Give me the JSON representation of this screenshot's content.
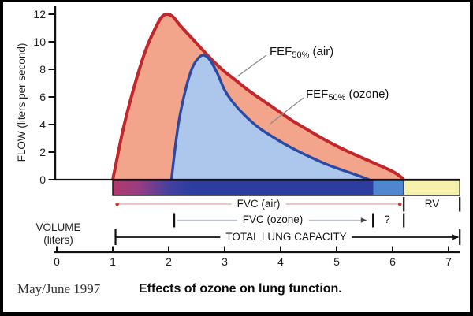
{
  "chart_data": {
    "type": "area",
    "title": "Effects of ozone on lung function.",
    "xlabel": "VOLUME (liters)",
    "ylabel": "FLOW (liters per second)",
    "xlim": [
      0,
      7
    ],
    "ylim": [
      0,
      12
    ],
    "xticks": [
      0,
      1,
      2,
      3,
      4,
      5,
      6,
      7
    ],
    "yticks": [
      0,
      2,
      4,
      6,
      8,
      10,
      12
    ],
    "grid": false,
    "legend_position": "inline-annotations",
    "series": [
      {
        "name": "air",
        "annotation": "FEF50% (air)",
        "stroke": "#C4272B",
        "fill": "#F2A58B",
        "peak_flow_l_per_s": 12,
        "points": [
          [
            1.0,
            0
          ],
          [
            1.08,
            1.6
          ],
          [
            1.2,
            3.9
          ],
          [
            1.38,
            6.7
          ],
          [
            1.58,
            9.3
          ],
          [
            1.75,
            10.9
          ],
          [
            1.9,
            11.9
          ],
          [
            2.05,
            11.9
          ],
          [
            2.2,
            11.2
          ],
          [
            2.45,
            10.1
          ],
          [
            2.7,
            9.0
          ],
          [
            2.95,
            8.0
          ],
          [
            3.2,
            7.2
          ],
          [
            3.45,
            6.4
          ],
          [
            3.7,
            5.7
          ],
          [
            3.95,
            5.0
          ],
          [
            4.2,
            4.3
          ],
          [
            4.45,
            3.7
          ],
          [
            4.7,
            3.1
          ],
          [
            4.95,
            2.55
          ],
          [
            5.2,
            2.05
          ],
          [
            5.45,
            1.6
          ],
          [
            5.7,
            1.15
          ],
          [
            5.95,
            0.7
          ],
          [
            6.1,
            0.35
          ],
          [
            6.2,
            0
          ]
        ]
      },
      {
        "name": "ozone",
        "annotation": "FEF50% (ozone)",
        "stroke": "#2B4AA4",
        "fill": "#ADC6EB",
        "peak_flow_l_per_s": 9,
        "points": [
          [
            2.05,
            0
          ],
          [
            2.1,
            1.8
          ],
          [
            2.18,
            4.2
          ],
          [
            2.3,
            6.5
          ],
          [
            2.42,
            8.1
          ],
          [
            2.55,
            8.9
          ],
          [
            2.65,
            9.0
          ],
          [
            2.75,
            8.6
          ],
          [
            2.87,
            7.7
          ],
          [
            3.0,
            6.5
          ],
          [
            3.15,
            5.6
          ],
          [
            3.35,
            4.7
          ],
          [
            3.6,
            3.8
          ],
          [
            3.9,
            3.0
          ],
          [
            4.2,
            2.3
          ],
          [
            4.5,
            1.7
          ],
          [
            4.8,
            1.15
          ],
          [
            5.1,
            0.7
          ],
          [
            5.35,
            0.35
          ],
          [
            5.58,
            0
          ]
        ]
      }
    ]
  },
  "labels": {
    "fef_air": {
      "prefix": "FEF",
      "sub": "50%",
      "suffix": " (air)"
    },
    "fef_ozone": {
      "prefix": "FEF",
      "sub": "50%",
      "suffix": " (ozone)"
    }
  },
  "rows": {
    "fvc_air": {
      "label": "FVC (air)",
      "start_volume": 1.08,
      "end_volume": 6.13
    },
    "rv": {
      "label": "RV",
      "start_volume": 6.2,
      "end_volume": 7.2
    },
    "fvc_ozone": {
      "label": "FVC (ozone)",
      "start_volume": 2.1,
      "end_volume": 5.54
    },
    "uncertain": {
      "label": "?",
      "start_volume": 5.65,
      "end_volume": 6.2
    },
    "tlc": {
      "label": "TOTAL LUNG CAPACITY",
      "start_volume": 1.05,
      "end_volume": 7.2
    }
  },
  "bar": {
    "start_volume": 1.0,
    "end_volume": 7.2,
    "gradient": [
      {
        "v": 1.0,
        "c": "#B13A6B"
      },
      {
        "v": 1.45,
        "c": "#9A3C82"
      },
      {
        "v": 2.0,
        "c": "#45409E"
      },
      {
        "v": 2.4,
        "c": "#2B3EA0"
      },
      {
        "v": 5.65,
        "c": "#2B3EA0"
      },
      {
        "v": 5.66,
        "c": "#4E86D0"
      },
      {
        "v": 6.2,
        "c": "#4E86D0"
      },
      {
        "v": 6.21,
        "c": "#F6F2AC"
      },
      {
        "v": 7.2,
        "c": "#F6F2AC"
      }
    ]
  },
  "volume_label": {
    "line1": "VOLUME",
    "line2": "(liters)"
  },
  "caption": {
    "date": "May/June 1997",
    "title": "Effects of ozone on lung function."
  },
  "colors": {
    "air_stroke": "#C4272B",
    "air_fill": "#F2A58B",
    "ozone_stroke": "#2B4AA4",
    "ozone_fill": "#ADC6EB",
    "bar_dark_blue": "#2B3EA0",
    "bar_magenta": "#B13A6B",
    "bar_light_blue": "#4E86D0",
    "bar_yellow": "#F6F2AC",
    "axis": "#111111"
  }
}
